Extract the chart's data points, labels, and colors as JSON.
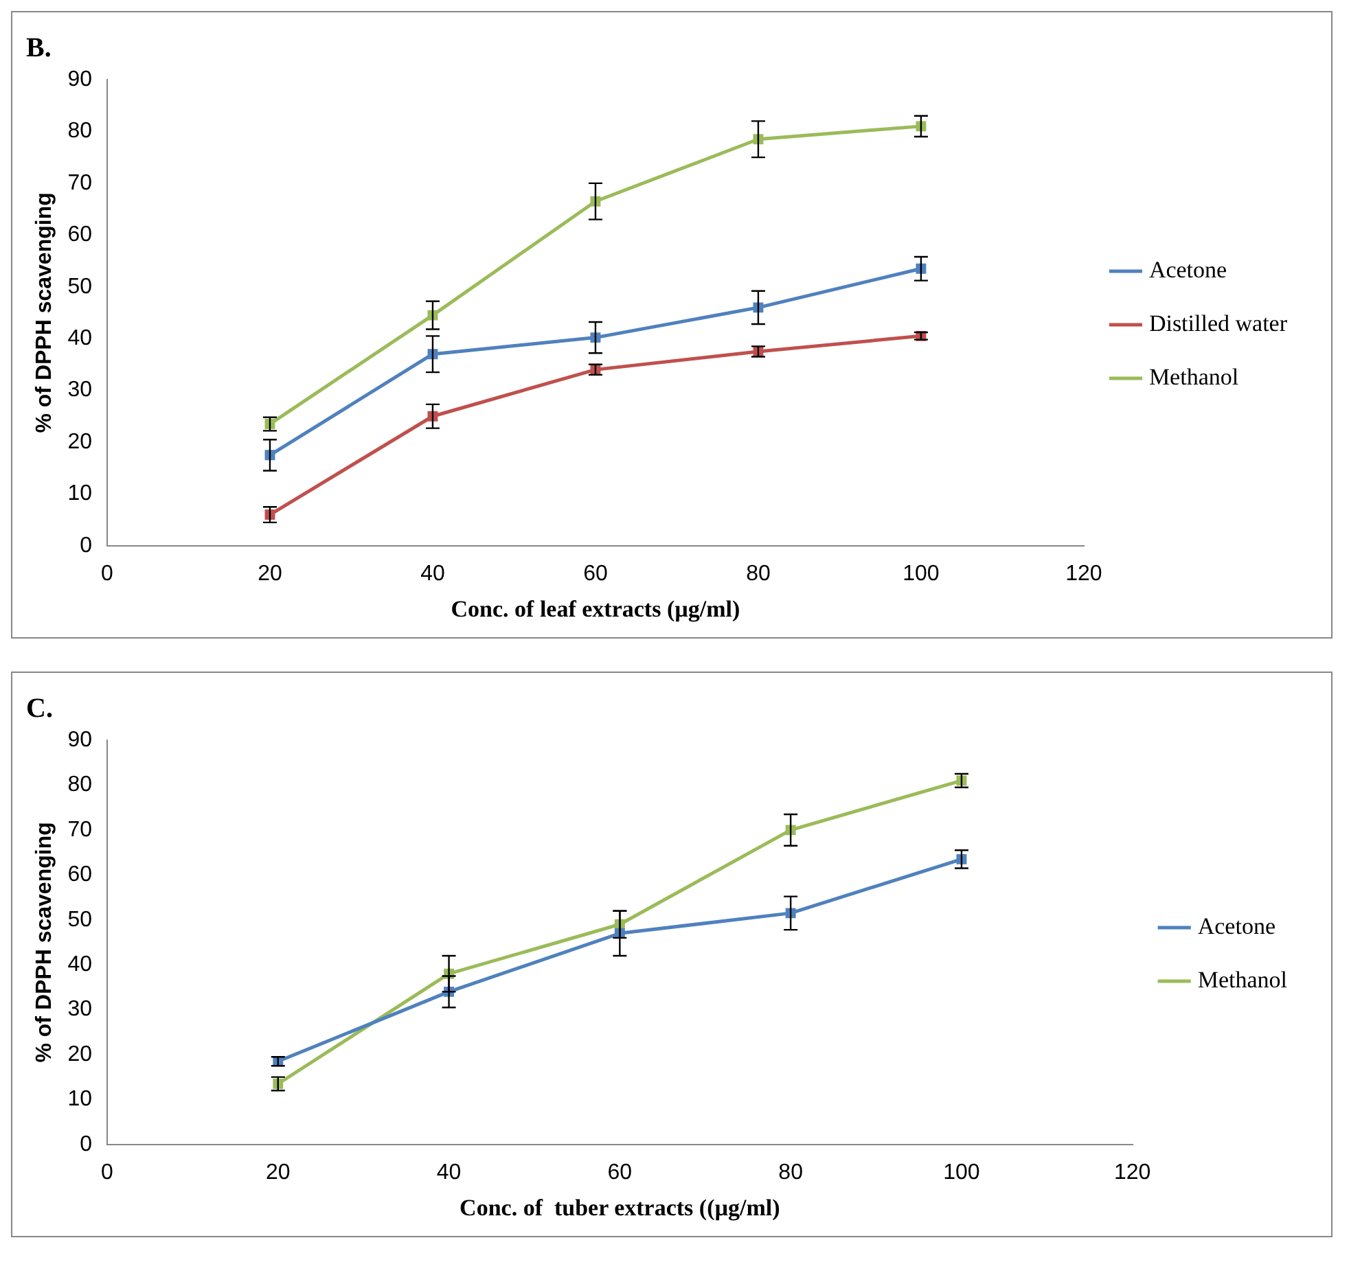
{
  "chart_data": [
    {
      "type": "line",
      "title": "B.",
      "xlabel": "Conc. of leaf extracts (µg/ml)",
      "ylabel": "% of DPPH scavenging",
      "x": [
        20,
        40,
        60,
        80,
        100
      ],
      "xlim": [
        0,
        120
      ],
      "xticks": [
        0,
        20,
        40,
        60,
        80,
        100,
        120
      ],
      "ylim": [
        0,
        90
      ],
      "yticks": [
        0,
        10,
        20,
        30,
        40,
        50,
        60,
        70,
        80,
        90
      ],
      "grid": false,
      "legend": "right",
      "marker": "square",
      "series": [
        {
          "name": "Acetone",
          "color": "#4f81bd",
          "values": [
            17.5,
            37,
            40.2,
            46,
            53.5
          ],
          "errors": [
            3,
            3.5,
            3,
            3.2,
            2.3
          ]
        },
        {
          "name": "Distilled water",
          "color": "#c0504d",
          "values": [
            6,
            25,
            34,
            37.5,
            40.5
          ],
          "errors": [
            1.5,
            2.3,
            1,
            1,
            0.7
          ]
        },
        {
          "name": "Methanol",
          "color": "#9bbb59",
          "values": [
            23.5,
            44.5,
            66.5,
            78.5,
            81
          ],
          "errors": [
            1.3,
            2.7,
            3.5,
            3.5,
            2
          ]
        }
      ]
    },
    {
      "type": "line",
      "title": "C.",
      "xlabel": "Conc. of  tuber extracts ((µg/ml)",
      "ylabel": "% of DPPH scavenging",
      "x": [
        20,
        40,
        60,
        80,
        100
      ],
      "xlim": [
        0,
        120
      ],
      "xticks": [
        0,
        20,
        40,
        60,
        80,
        100,
        120
      ],
      "ylim": [
        0,
        90
      ],
      "yticks": [
        0,
        10,
        20,
        30,
        40,
        50,
        60,
        70,
        80,
        90
      ],
      "grid": false,
      "legend": "right",
      "marker": "square",
      "series": [
        {
          "name": "Acetone",
          "color": "#4f81bd",
          "values": [
            18.5,
            34,
            47,
            51.5,
            63.5
          ],
          "errors": [
            1,
            3.5,
            5,
            3.7,
            2
          ]
        },
        {
          "name": "Methanol",
          "color": "#9bbb59",
          "values": [
            13.5,
            38,
            49,
            70,
            81
          ],
          "errors": [
            1.5,
            4,
            3,
            3.5,
            1.5
          ]
        }
      ]
    }
  ]
}
